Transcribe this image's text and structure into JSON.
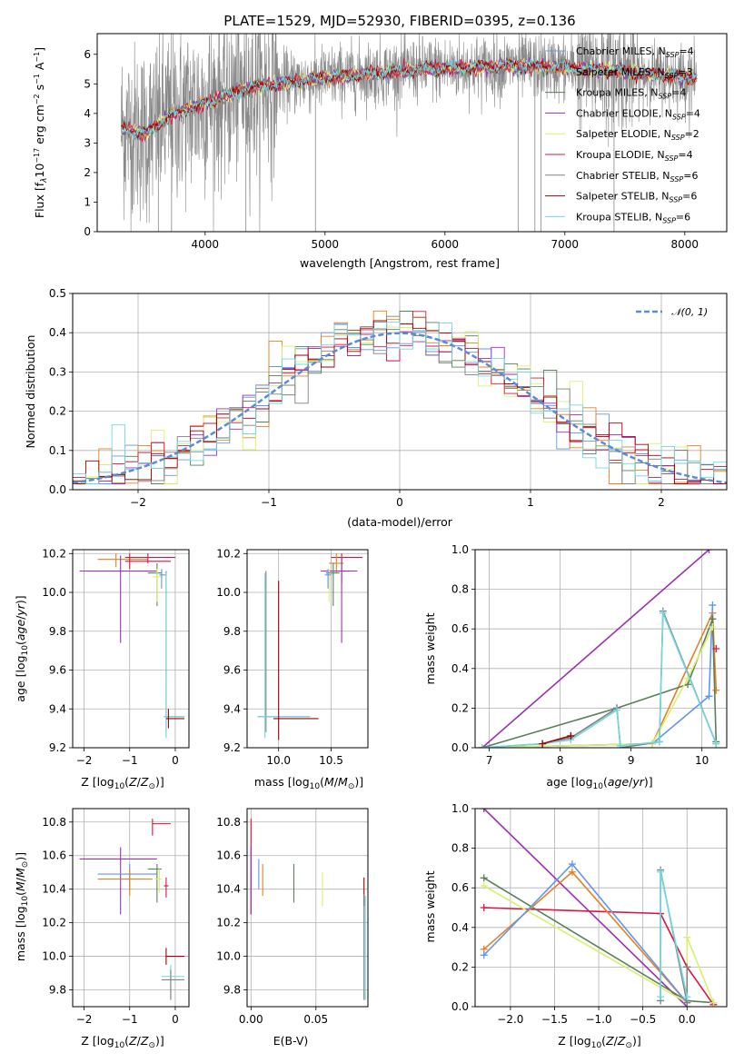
{
  "colors": {
    "chabrier_miles": "#6495ED",
    "salpeter_miles": "#E8801E",
    "kroupa_miles": "#5A7F5A",
    "chabrier_elodie": "#9B30B4",
    "salpeter_elodie": "#D8F070",
    "kroupa_elodie": "#DC143C",
    "chabrier_stelib": "#808080",
    "salpeter_stelib": "#A00000",
    "kroupa_stelib": "#70D8E0",
    "spectrum_grey": "#888888",
    "grid": "#b0b0b0"
  },
  "chart_data": [
    {
      "id": "spectrum",
      "type": "line",
      "title": "PLATE=1529, MJD=52930, FIBERID=0395, z=0.136",
      "xlabel": "wavelength [Angstrom, rest frame]",
      "ylabel": "Flux [fλ10⁻¹⁷ erg cm⁻² s⁻¹ Å⁻¹]",
      "xlim": [
        3100,
        8350
      ],
      "ylim": [
        0,
        6.7
      ],
      "xticks": [
        "4000",
        "5000",
        "6000",
        "7000",
        "8000"
      ],
      "yticks": [
        "0",
        "1",
        "2",
        "3",
        "4",
        "5",
        "6"
      ],
      "grid": false,
      "legend_position": "upper right",
      "series": [
        {
          "name": "Chabrier MILES, N_SSP=4"
        },
        {
          "name": "Salpeter MILES, N_SSP=3"
        },
        {
          "name": "Kroupa MILES, N_SSP=4"
        },
        {
          "name": "Chabrier ELODIE, N_SSP=4"
        },
        {
          "name": "Salpeter ELODIE, N_SSP=2"
        },
        {
          "name": "Kroupa ELODIE, N_SSP=4"
        },
        {
          "name": "Chabrier STELIB, N_SSP=6"
        },
        {
          "name": "Salpeter STELIB, N_SSP=6"
        },
        {
          "name": "Kroupa STELIB, N_SSP=6"
        }
      ],
      "model_trend": {
        "x": [
          3300,
          3500,
          3700,
          3900,
          4100,
          4300,
          4500,
          4800,
          5100,
          5400,
          5800,
          6200,
          6600,
          7000,
          7400,
          7800,
          8100
        ],
        "y": [
          3.5,
          3.3,
          3.9,
          4.2,
          4.5,
          4.8,
          4.95,
          5.1,
          5.25,
          5.35,
          5.5,
          5.55,
          5.6,
          5.55,
          5.45,
          5.3,
          5.2
        ]
      }
    },
    {
      "id": "residuals",
      "type": "step",
      "xlabel": "(data-model)/error",
      "ylabel": "Normed distribution",
      "xlim": [
        -2.5,
        2.5
      ],
      "ylim": [
        0,
        0.5
      ],
      "xticks": [
        "−2",
        "−1",
        "0",
        "1",
        "2"
      ],
      "yticks": [
        "0.0",
        "0.1",
        "0.2",
        "0.3",
        "0.4",
        "0.5"
      ],
      "grid": true,
      "legend_position": "upper right",
      "legend_label": "𝒩(0, 1)",
      "bin_width": 0.1
    },
    {
      "id": "age_vs_Z",
      "type": "errorbar",
      "xlabel": "Z [log₁₀(Z/Z⊙)]",
      "ylabel": "age  [log₁₀(age/yr)]",
      "xlim": [
        -2.25,
        0.3
      ],
      "ylim": [
        9.2,
        10.22
      ],
      "xticks": [
        "−2",
        "−1",
        "0"
      ],
      "yticks": [
        "9.2",
        "9.4",
        "9.6",
        "9.8",
        "10.0",
        "10.2"
      ],
      "grid": true,
      "points": [
        {
          "x": -1.3,
          "y": 10.17,
          "xlo": -1.7,
          "xhi": -0.6,
          "ylo": 10.13,
          "yhi": 10.2,
          "c": "salpeter_miles"
        },
        {
          "x": -1.0,
          "y": 10.16,
          "xlo": -1.1,
          "xhi": -0.1,
          "ylo": 10.12,
          "yhi": 10.2,
          "c": "kroupa_elodie"
        },
        {
          "x": -0.6,
          "y": 10.18,
          "xlo": -1.1,
          "xhi": 0.0,
          "ylo": 10.15,
          "yhi": 10.2,
          "c": "kroupa_elodie"
        },
        {
          "x": -1.2,
          "y": 10.11,
          "xlo": -2.1,
          "xhi": -0.4,
          "ylo": 9.74,
          "yhi": 10.19,
          "c": "chabrier_elodie"
        },
        {
          "x": -0.4,
          "y": 10.1,
          "xlo": -0.6,
          "xhi": -0.3,
          "ylo": 9.93,
          "yhi": 10.15,
          "c": "kroupa_miles"
        },
        {
          "x": -0.4,
          "y": 10.08,
          "xlo": -0.5,
          "xhi": -0.3,
          "ylo": 9.95,
          "yhi": 10.12,
          "c": "salpeter_elodie"
        },
        {
          "x": -0.3,
          "y": 10.09,
          "xlo": -0.35,
          "xhi": -0.2,
          "ylo": 10.02,
          "yhi": 10.12,
          "c": "chabrier_miles"
        },
        {
          "x": -0.2,
          "y": 9.36,
          "xlo": -0.25,
          "xhi": 0.2,
          "ylo": 9.28,
          "yhi": 10.11,
          "c": "chabrier_stelib"
        },
        {
          "x": -0.2,
          "y": 9.36,
          "xlo": -0.25,
          "xhi": 0.2,
          "ylo": 9.25,
          "yhi": 10.1,
          "c": "kroupa_stelib"
        },
        {
          "x": -0.15,
          "y": 9.35,
          "xlo": -0.2,
          "xhi": 0.2,
          "ylo": 9.3,
          "yhi": 9.4,
          "c": "salpeter_stelib"
        }
      ]
    },
    {
      "id": "age_vs_mass",
      "type": "errorbar",
      "xlabel": "mass [log₁₀(M/M⊙)]",
      "xlim": [
        9.7,
        10.85
      ],
      "ylim": [
        9.2,
        10.22
      ],
      "xticks": [
        "10.0",
        "10.5"
      ],
      "yticks": [
        "9.2",
        "9.4",
        "9.6",
        "9.8",
        "10.0",
        "10.2"
      ],
      "grid": true,
      "points": [
        {
          "x": 10.6,
          "y": 10.18,
          "xlo": 10.5,
          "xhi": 10.8,
          "ylo": 10.05,
          "yhi": 10.2,
          "c": "kroupa_elodie"
        },
        {
          "x": 10.55,
          "y": 10.15,
          "xlo": 10.48,
          "xhi": 10.62,
          "ylo": 10.1,
          "yhi": 10.2,
          "c": "salpeter_miles"
        },
        {
          "x": 10.6,
          "y": 10.11,
          "xlo": 10.4,
          "xhi": 10.75,
          "ylo": 9.74,
          "yhi": 10.18,
          "c": "chabrier_elodie"
        },
        {
          "x": 10.48,
          "y": 10.09,
          "xlo": 10.45,
          "xhi": 10.52,
          "ylo": 9.95,
          "yhi": 10.12,
          "c": "salpeter_elodie"
        },
        {
          "x": 10.52,
          "y": 10.1,
          "xlo": 10.45,
          "xhi": 10.58,
          "ylo": 9.93,
          "yhi": 10.15,
          "c": "kroupa_miles"
        },
        {
          "x": 10.47,
          "y": 10.09,
          "xlo": 10.44,
          "xhi": 10.5,
          "ylo": 10.02,
          "yhi": 10.12,
          "c": "chabrier_miles"
        },
        {
          "x": 9.88,
          "y": 9.36,
          "xlo": 9.8,
          "xhi": 10.3,
          "ylo": 9.28,
          "yhi": 10.11,
          "c": "chabrier_stelib"
        },
        {
          "x": 9.87,
          "y": 9.36,
          "xlo": 9.8,
          "xhi": 10.3,
          "ylo": 9.25,
          "yhi": 10.1,
          "c": "kroupa_stelib"
        },
        {
          "x": 10.0,
          "y": 9.35,
          "xlo": 9.95,
          "xhi": 10.38,
          "ylo": 9.24,
          "yhi": 10.06,
          "c": "salpeter_stelib"
        }
      ]
    },
    {
      "id": "weight_vs_age",
      "type": "line",
      "xlabel": "age  [log₁₀(age/yr)]",
      "ylabel": "mass weight",
      "xlim": [
        6.8,
        10.35
      ],
      "ylim": [
        0,
        1.0
      ],
      "xticks": [
        "7",
        "8",
        "9",
        "10"
      ],
      "yticks": [
        "0.0",
        "0.2",
        "0.4",
        "0.6",
        "0.8",
        "1.0"
      ],
      "grid": true,
      "series": [
        {
          "c": "chabrier_elodie",
          "x": [
            6.9,
            10.1
          ],
          "y": [
            0.0,
            1.0
          ]
        },
        {
          "c": "salpeter_miles",
          "x": [
            6.9,
            9.3,
            10.15,
            10.2
          ],
          "y": [
            0.0,
            0.02,
            0.68,
            0.29
          ]
        },
        {
          "c": "chabrier_miles",
          "x": [
            6.9,
            9.3,
            10.1,
            10.15
          ],
          "y": [
            0.0,
            0.02,
            0.26,
            0.72
          ]
        },
        {
          "c": "kroupa_miles",
          "x": [
            6.9,
            8.8,
            9.8,
            10.15,
            10.2
          ],
          "y": [
            0.0,
            0.2,
            0.32,
            0.65,
            0.03
          ]
        },
        {
          "c": "salpeter_elodie",
          "x": [
            6.9,
            9.3,
            9.8,
            10.15
          ],
          "y": [
            0.0,
            0.02,
            0.35,
            0.61
          ]
        },
        {
          "c": "chabrier_stelib",
          "x": [
            6.9,
            7.75,
            8.15,
            8.8,
            8.85,
            9.4,
            9.45,
            10.2
          ],
          "y": [
            0.0,
            0.02,
            0.05,
            0.2,
            0.0,
            0.03,
            0.69,
            0.02
          ]
        },
        {
          "c": "kroupa_stelib",
          "x": [
            6.9,
            7.75,
            8.15,
            8.8,
            8.85,
            9.4,
            9.45,
            10.2
          ],
          "y": [
            0.0,
            0.02,
            0.04,
            0.19,
            0.01,
            0.03,
            0.68,
            0.02
          ]
        },
        {
          "c": "salpeter_stelib",
          "x": [
            7.75,
            8.15
          ],
          "y": [
            0.02,
            0.06
          ]
        },
        {
          "c": "kroupa_elodie",
          "x": [
            10.2
          ],
          "y": [
            0.5
          ]
        }
      ]
    },
    {
      "id": "mass_vs_Z",
      "type": "errorbar",
      "xlabel": "Z [log₁₀(Z/Z⊙)]",
      "ylabel": "mass [log₁₀(M/M⊙)]",
      "xlim": [
        -2.25,
        0.3
      ],
      "ylim": [
        9.7,
        10.88
      ],
      "xticks": [
        "−2",
        "−1",
        "0"
      ],
      "yticks": [
        "9.8",
        "10.0",
        "10.2",
        "10.4",
        "10.6",
        "10.8"
      ],
      "grid": true,
      "points": [
        {
          "x": -0.5,
          "y": 10.79,
          "xlo": -0.5,
          "xhi": -0.1,
          "ylo": 10.72,
          "yhi": 10.82,
          "c": "kroupa_elodie"
        },
        {
          "x": -1.2,
          "y": 10.58,
          "xlo": -2.1,
          "xhi": -0.4,
          "ylo": 10.25,
          "yhi": 10.65,
          "c": "chabrier_elodie"
        },
        {
          "x": -0.4,
          "y": 10.52,
          "xlo": -0.6,
          "xhi": -0.3,
          "ylo": 10.32,
          "yhi": 10.55,
          "c": "kroupa_miles"
        },
        {
          "x": -1.0,
          "y": 10.49,
          "xlo": -1.7,
          "xhi": -0.4,
          "ylo": 10.4,
          "yhi": 10.55,
          "c": "chabrier_miles"
        },
        {
          "x": -1.0,
          "y": 10.46,
          "xlo": -1.7,
          "xhi": -0.5,
          "ylo": 10.36,
          "yhi": 10.52,
          "c": "salpeter_miles"
        },
        {
          "x": -0.35,
          "y": 10.46,
          "xlo": -0.45,
          "xhi": -0.3,
          "ylo": 10.38,
          "yhi": 10.52,
          "c": "salpeter_elodie"
        },
        {
          "x": -0.2,
          "y": 10.42,
          "xlo": -0.25,
          "xhi": -0.15,
          "ylo": 10.35,
          "yhi": 10.47,
          "c": "kroupa_elodie"
        },
        {
          "x": -0.2,
          "y": 10.0,
          "xlo": -0.2,
          "xhi": 0.2,
          "ylo": 9.95,
          "yhi": 10.05,
          "c": "salpeter_stelib"
        },
        {
          "x": -0.1,
          "y": 9.88,
          "xlo": -0.3,
          "xhi": 0.2,
          "ylo": 9.75,
          "yhi": 9.95,
          "c": "kroupa_stelib"
        },
        {
          "x": -0.1,
          "y": 9.86,
          "xlo": -0.3,
          "xhi": 0.2,
          "ylo": 9.74,
          "yhi": 9.92,
          "c": "chabrier_stelib"
        }
      ]
    },
    {
      "id": "mass_vs_EBV",
      "type": "errorbar",
      "xlabel": "E(B-V)",
      "xlim": [
        -0.003,
        0.09
      ],
      "ylim": [
        9.7,
        10.88
      ],
      "xticks": [
        "0.00",
        "0.05"
      ],
      "yticks": [
        "9.8",
        "10.0",
        "10.2",
        "10.4",
        "10.6",
        "10.8"
      ],
      "grid": true,
      "points": [
        {
          "x": 0.0,
          "y": 10.6,
          "ylo": 10.25,
          "yhi": 10.82,
          "c": "kroupa_elodie"
        },
        {
          "x": 0.0,
          "y": 10.45,
          "ylo": 10.25,
          "yhi": 10.65,
          "c": "chabrier_elodie"
        },
        {
          "x": 0.006,
          "y": 10.48,
          "ylo": 10.4,
          "yhi": 10.58,
          "c": "chabrier_miles"
        },
        {
          "x": 0.009,
          "y": 10.45,
          "ylo": 10.36,
          "yhi": 10.55,
          "c": "salpeter_miles"
        },
        {
          "x": 0.033,
          "y": 10.45,
          "ylo": 10.32,
          "yhi": 10.55,
          "c": "kroupa_miles"
        },
        {
          "x": 0.055,
          "y": 10.4,
          "ylo": 10.3,
          "yhi": 10.5,
          "c": "salpeter_elodie"
        },
        {
          "x": 0.087,
          "y": 10.4,
          "ylo": 10.3,
          "yhi": 10.47,
          "c": "salpeter_stelib"
        },
        {
          "x": 0.087,
          "y": 10.0,
          "ylo": 9.74,
          "yhi": 10.37,
          "c": "chabrier_stelib"
        },
        {
          "x": 0.088,
          "y": 10.0,
          "ylo": 9.74,
          "yhi": 10.36,
          "c": "kroupa_stelib"
        }
      ]
    },
    {
      "id": "weight_vs_Z",
      "type": "line",
      "xlabel": "Z [log₁₀(Z/Z⊙)]",
      "ylabel": "mass weight",
      "xlim": [
        -2.4,
        0.45
      ],
      "ylim": [
        0,
        1.0
      ],
      "xticks": [
        "−2.0",
        "−1.5",
        "−1.0",
        "−0.5",
        "0.0"
      ],
      "yticks": [
        "0.0",
        "0.2",
        "0.4",
        "0.6",
        "0.8",
        "1.0"
      ],
      "grid": true,
      "series": [
        {
          "c": "chabrier_elodie",
          "x": [
            -2.3,
            0.0
          ],
          "y": [
            1.0,
            0.0
          ]
        },
        {
          "c": "kroupa_elodie",
          "x": [
            -2.3,
            -0.3,
            0.0,
            0.3
          ],
          "y": [
            0.5,
            0.47,
            0.2,
            0.01
          ]
        },
        {
          "c": "kroupa_miles",
          "x": [
            -2.3,
            0.0,
            0.3
          ],
          "y": [
            0.65,
            0.03,
            0.02
          ]
        },
        {
          "c": "salpeter_elodie",
          "x": [
            -2.3,
            0.0,
            0.0,
            0.3
          ],
          "y": [
            0.61,
            0.02,
            0.35,
            0.02
          ]
        },
        {
          "c": "salpeter_miles",
          "x": [
            -2.3,
            -1.3,
            0.0
          ],
          "y": [
            0.29,
            0.68,
            0.02
          ]
        },
        {
          "c": "chabrier_miles",
          "x": [
            -2.3,
            -1.3,
            0.0
          ],
          "y": [
            0.26,
            0.72,
            0.02
          ]
        },
        {
          "c": "chabrier_stelib",
          "x": [
            -0.3,
            -0.3,
            0.0,
            0.0
          ],
          "y": [
            0.03,
            0.69,
            0.02,
            0.2
          ]
        },
        {
          "c": "kroupa_stelib",
          "x": [
            -0.3,
            -0.3,
            0.0
          ],
          "y": [
            0.05,
            0.68,
            0.05
          ]
        }
      ]
    }
  ]
}
